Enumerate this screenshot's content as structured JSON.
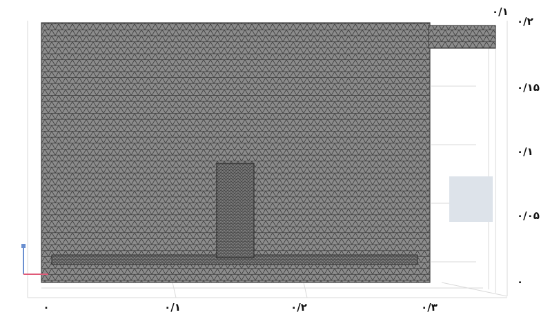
{
  "viewer": {
    "y_ticks": [
      "۰/۲",
      "۰/۱۵",
      "۰/۱",
      "۰/۰۵",
      "۰"
    ],
    "x_ticks": [
      "۰",
      "۰/۱",
      "۰/۲",
      "۰/۳"
    ],
    "corner_label": "۰/۱"
  },
  "colors": {
    "mesh_fill": "#8c8c8c",
    "mesh_line": "#3a3a3a",
    "background": "#ffffff",
    "grid": "#d9d9d9",
    "inset_box": "#dde3ea",
    "axis_x": "#e05a78",
    "axis_y": "#6a8fd0"
  }
}
